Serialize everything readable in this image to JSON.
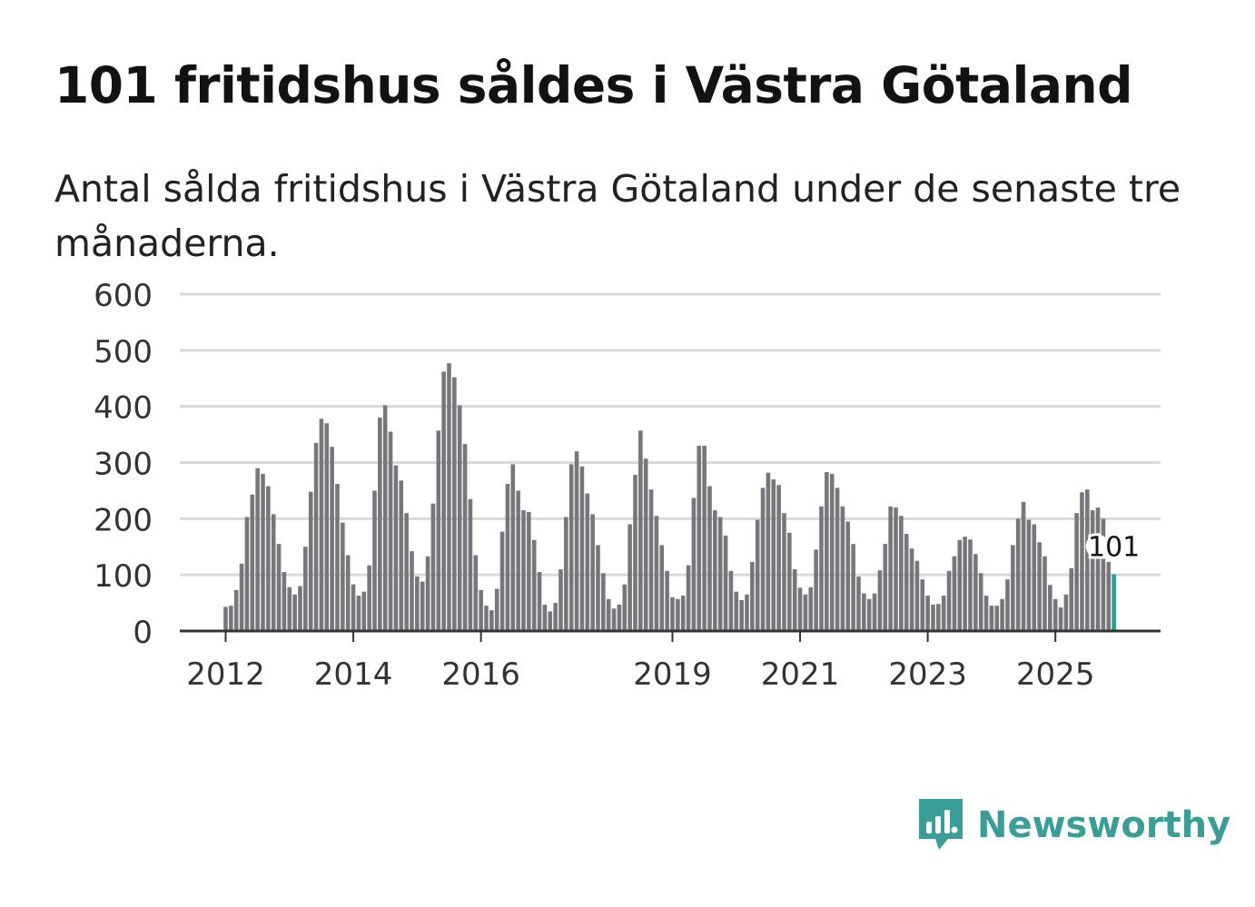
{
  "title": "101 fritidshus såldes i Västra Götaland",
  "subtitle": "Antal sålda fritidshus i Västra Götaland under de senaste tre månaderna.",
  "brand": {
    "name": "Newsworthy",
    "color": "#3a9e96"
  },
  "colors": {
    "bar": "#77767b",
    "highlight": "#2a9d8f",
    "grid": "#d9d9d9",
    "axis": "#333333"
  },
  "chart_data": {
    "type": "bar",
    "title": "101 fritidshus såldes i Västra Götaland",
    "xlabel": "",
    "ylabel": "",
    "ylim": [
      0,
      600
    ],
    "yticks": [
      0,
      100,
      200,
      300,
      400,
      500,
      600
    ],
    "ytick_labels": [
      "0",
      "100",
      "200",
      "300",
      "400",
      "500",
      "600"
    ],
    "xtick_labels": [
      {
        "label": "2012",
        "index": 0
      },
      {
        "label": "2014",
        "index": 24
      },
      {
        "label": "2016",
        "index": 48
      },
      {
        "label": "2019",
        "index": 84
      },
      {
        "label": "2021",
        "index": 108
      },
      {
        "label": "2023",
        "index": 132
      },
      {
        "label": "2025",
        "index": 156
      }
    ],
    "start": "2012-01",
    "highlight_index": 167,
    "highlight_label": "101",
    "values": [
      43,
      45,
      73,
      120,
      203,
      243,
      290,
      280,
      258,
      208,
      155,
      105,
      78,
      65,
      80,
      150,
      248,
      335,
      378,
      370,
      328,
      262,
      193,
      135,
      83,
      63,
      70,
      117,
      250,
      380,
      402,
      355,
      295,
      268,
      210,
      142,
      97,
      88,
      133,
      227,
      357,
      462,
      477,
      452,
      402,
      333,
      235,
      135,
      73,
      45,
      37,
      75,
      177,
      262,
      297,
      250,
      215,
      212,
      162,
      105,
      47,
      35,
      50,
      110,
      203,
      297,
      320,
      293,
      245,
      208,
      153,
      103,
      57,
      40,
      47,
      83,
      190,
      278,
      357,
      307,
      252,
      205,
      153,
      107,
      60,
      57,
      63,
      117,
      237,
      330,
      330,
      258,
      215,
      203,
      170,
      107,
      70,
      55,
      65,
      123,
      198,
      255,
      282,
      270,
      260,
      210,
      175,
      110,
      77,
      65,
      78,
      145,
      222,
      283,
      280,
      255,
      222,
      195,
      155,
      97,
      67,
      57,
      67,
      108,
      155,
      222,
      220,
      205,
      173,
      147,
      125,
      92,
      63,
      47,
      48,
      63,
      107,
      133,
      162,
      168,
      163,
      137,
      103,
      63,
      45,
      45,
      57,
      92,
      153,
      200,
      230,
      198,
      190,
      158,
      133,
      82,
      57,
      42,
      65,
      112,
      210,
      247,
      252,
      215,
      220,
      200,
      123,
      101
    ]
  }
}
